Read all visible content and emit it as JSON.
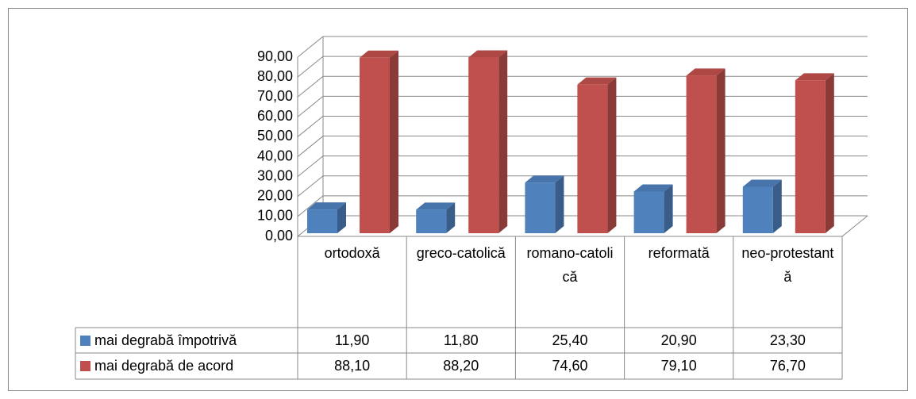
{
  "chart_data": {
    "type": "bar3d",
    "categories": [
      "ortodoxă",
      "greco-catolică",
      "romano-catolică",
      "reformată",
      "neo-protestantă"
    ],
    "series": [
      {
        "name": "mai degrabă împotrivă",
        "color": "#4f81bd",
        "values": [
          11.9,
          11.8,
          25.4,
          20.9,
          23.3
        ],
        "value_labels": [
          "11,90",
          "11,80",
          "25,40",
          "20,90",
          "23,30"
        ]
      },
      {
        "name": "mai degrabă de acord",
        "color": "#c0504d",
        "values": [
          88.1,
          88.2,
          74.6,
          79.1,
          76.7
        ],
        "value_labels": [
          "88,10",
          "88,20",
          "74,60",
          "79,10",
          "76,70"
        ]
      }
    ],
    "ylim": [
      0,
      90
    ],
    "yticks": [
      {
        "value": 0,
        "label": "0,00"
      },
      {
        "value": 10,
        "label": "10,00"
      },
      {
        "value": 20,
        "label": "20,00"
      },
      {
        "value": 30,
        "label": "30,00"
      },
      {
        "value": 40,
        "label": "40,00"
      },
      {
        "value": 50,
        "label": "50,00"
      },
      {
        "value": 60,
        "label": "60,00"
      },
      {
        "value": 70,
        "label": "70,00"
      },
      {
        "value": 80,
        "label": "80,00"
      },
      {
        "value": 90,
        "label": "90,00"
      }
    ],
    "grid": true,
    "data_table": true
  }
}
